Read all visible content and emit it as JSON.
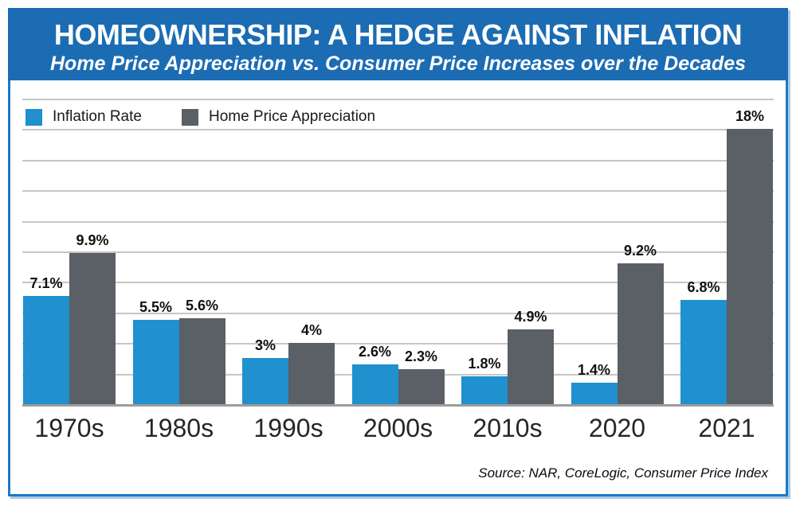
{
  "header": {
    "title": "HOMEOWNERSHIP: A HEDGE AGAINST INFLATION",
    "subtitle": "Home Price Appreciation vs. Consumer Price Increases over the Decades"
  },
  "legend": {
    "items": [
      {
        "label": "Inflation Rate",
        "color": "#2090CE"
      },
      {
        "label": "Home Price Appreciation",
        "color": "#5B5F66"
      }
    ]
  },
  "chart_data": {
    "type": "bar",
    "categories": [
      "1970s",
      "1980s",
      "1990s",
      "2000s",
      "2010s",
      "2020",
      "2021"
    ],
    "series": [
      {
        "name": "Inflation Rate",
        "color": "#2090CE",
        "values": [
          7.1,
          5.5,
          3,
          2.6,
          1.8,
          1.4,
          6.8
        ],
        "labels": [
          "7.1%",
          "5.5%",
          "3%",
          "2.6%",
          "1.8%",
          "1.4%",
          "6.8%"
        ]
      },
      {
        "name": "Home Price Appreciation",
        "color": "#5B5F66",
        "values": [
          9.9,
          5.6,
          4,
          2.3,
          4.9,
          9.2,
          18
        ],
        "labels": [
          "9.9%",
          "5.6%",
          "4%",
          "2.3%",
          "4.9%",
          "9.2%",
          "18%"
        ]
      }
    ],
    "ylim": [
      0,
      20
    ],
    "gridline_step": 2,
    "grid": true,
    "legend_position": "top-left",
    "data_labels": true,
    "y_axis_labels_visible": false
  },
  "footer": {
    "source": "Source: NAR, CoreLogic, Consumer Price Index"
  },
  "colors": {
    "header_background": "#1B6CB3",
    "panel_border": "#1E78C2",
    "border_shadow": "#A6C9E6",
    "bar_inflation": "#2090CE",
    "bar_home_price": "#5B5F66",
    "gridline": "#C6C6C6",
    "axis_line": "#9C9C9C",
    "title_text": "#FFFFFF",
    "label_text": "#111111"
  }
}
